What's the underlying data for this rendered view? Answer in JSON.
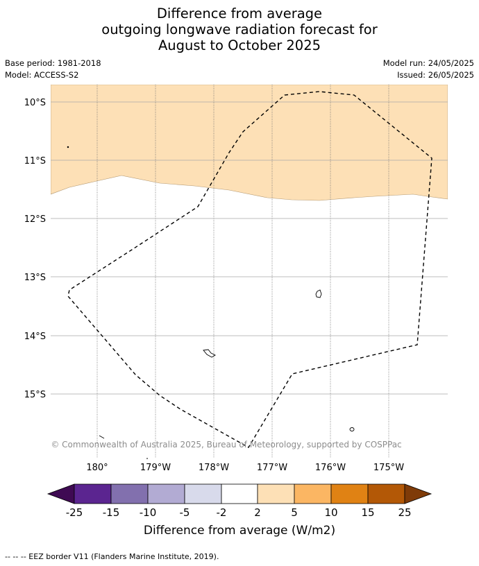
{
  "title": {
    "line1": "Difference from average",
    "line2": "outgoing longwave radiation forecast for",
    "line3": "August to October 2025"
  },
  "meta": {
    "base_period": "Base period: 1981-2018",
    "model": "Model: ACCESS-S2",
    "model_run": "Model run: 24/05/2025",
    "issued": "Issued: 26/05/2025"
  },
  "axes": {
    "lat_labels": [
      "10°S",
      "11°S",
      "12°S",
      "13°S",
      "14°S",
      "15°S"
    ],
    "lon_labels": [
      "180°",
      "179°W",
      "178°W",
      "177°W",
      "176°W",
      "175°W"
    ]
  },
  "copyright": "© Commonwealth of Australia 2025, Bureau of Meteorology, supported by COSPPac",
  "colorbar": {
    "ticks": [
      "-25",
      "-15",
      "-10",
      "-5",
      "-2",
      "2",
      "5",
      "10",
      "15",
      "25"
    ],
    "colors": [
      "#3f0a53",
      "#5b2590",
      "#8270ae",
      "#b2abd3",
      "#d8daeb",
      "#ffffff",
      "#fde0b6",
      "#fbb663",
      "#e08214",
      "#b35806",
      "#7f3b08"
    ],
    "label": "Difference from average (W/m2)"
  },
  "map_fill": {
    "positive_band_color": "#fde0b6",
    "band_category": "2 to 5"
  },
  "footnote": "--  --  -- EEZ border V11 (Flanders Marine Institute, 2019)."
}
